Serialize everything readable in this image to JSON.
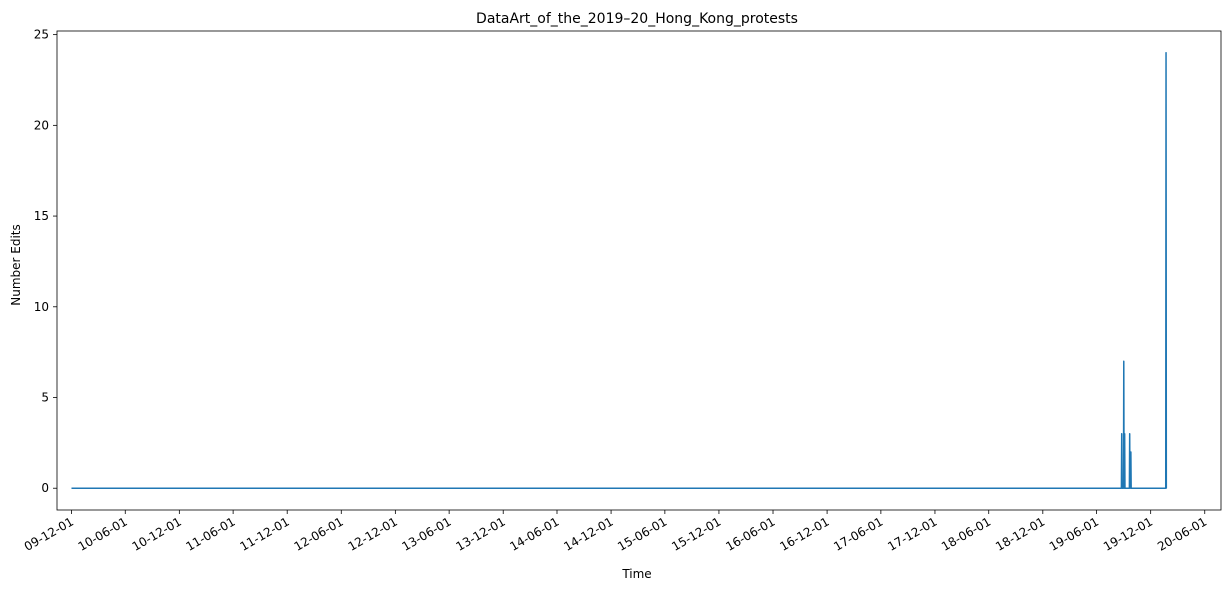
{
  "chart_data": {
    "type": "line",
    "title": "DataArt_of_the_2019–20_Hong_Kong_protests",
    "xlabel": "Time",
    "ylabel": "Number Edits",
    "ylim": [
      -1.2,
      25.2
    ],
    "yticks": [
      0,
      5,
      10,
      15,
      20,
      25
    ],
    "xlim": [
      "2009-10-13",
      "2020-07-26"
    ],
    "xticks": [
      "2009-12-01",
      "2010-06-01",
      "2010-12-01",
      "2011-06-01",
      "2011-12-01",
      "2012-06-01",
      "2012-12-01",
      "2013-06-01",
      "2013-12-01",
      "2014-06-01",
      "2014-12-01",
      "2015-06-01",
      "2015-12-01",
      "2016-06-01",
      "2016-12-01",
      "2017-06-01",
      "2017-12-01",
      "2018-06-01",
      "2018-12-01",
      "2019-06-01",
      "2019-12-01",
      "2020-06-01"
    ],
    "xtick_labels": [
      "09-12-01",
      "10-06-01",
      "10-12-01",
      "11-06-01",
      "11-12-01",
      "12-06-01",
      "12-12-01",
      "13-06-01",
      "13-12-01",
      "14-06-01",
      "14-12-01",
      "15-06-01",
      "15-12-01",
      "16-06-01",
      "16-12-01",
      "17-06-01",
      "17-12-01",
      "18-06-01",
      "18-12-01",
      "19-06-01",
      "19-12-01",
      "20-06-01"
    ],
    "grid": false,
    "color": "#1f77b4",
    "series": [
      {
        "x": [
          "2009-12-01",
          "2019-08-24",
          "2019-08-25",
          "2019-08-26",
          "2019-08-31",
          "2019-09-01",
          "2019-09-02",
          "2019-09-03",
          "2019-09-04",
          "2019-09-05",
          "2019-09-20",
          "2019-09-21",
          "2019-09-22",
          "2019-09-23",
          "2019-09-25",
          "2019-09-26",
          "2019-09-27",
          "2020-01-21",
          "2020-01-22",
          "2020-01-23",
          "2020-01-24"
        ],
        "y": [
          0,
          0,
          3,
          0,
          0,
          7,
          0,
          0,
          3,
          0,
          0,
          3,
          0,
          0,
          2,
          0,
          0,
          0,
          24,
          0,
          0
        ]
      }
    ]
  }
}
